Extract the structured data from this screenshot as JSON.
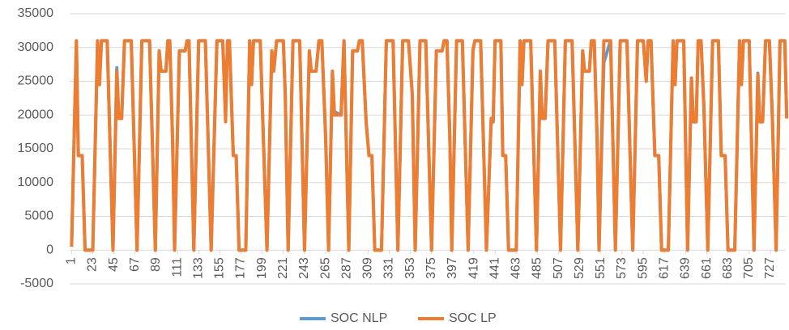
{
  "chart_data": {
    "type": "line",
    "x": [
      1,
      6,
      8,
      12,
      15,
      23,
      28,
      30,
      32,
      38,
      44,
      48,
      50,
      53,
      56,
      63,
      69,
      74,
      82,
      88,
      92,
      94,
      99,
      101,
      103,
      106,
      108,
      113,
      119,
      121,
      123,
      128,
      133,
      140,
      146,
      152,
      158,
      161,
      163,
      165,
      169,
      172,
      175,
      182,
      186,
      188,
      190,
      197,
      204,
      209,
      211,
      214,
      221,
      223,
      226,
      231,
      238,
      243,
      248,
      250,
      255,
      258,
      261,
      265,
      268,
      272,
      274,
      281,
      284,
      289,
      293,
      298,
      300,
      303,
      307,
      310,
      313,
      316,
      323,
      328,
      335,
      340,
      345,
      351,
      355,
      358,
      363,
      369,
      375,
      380,
      386,
      388,
      391,
      394,
      396,
      401,
      407,
      413,
      418,
      420,
      426,
      432,
      437,
      439,
      441,
      447,
      449,
      452,
      455,
      463,
      467,
      469,
      471,
      478,
      484,
      488,
      490,
      493,
      496,
      503,
      509,
      514,
      521,
      527,
      532,
      534,
      539,
      541,
      544,
      547,
      549,
      554,
      561,
      566,
      571,
      578,
      584,
      589,
      595,
      598,
      600,
      603,
      607,
      611,
      614,
      621,
      626,
      628,
      630,
      637,
      641,
      645,
      647,
      650,
      652,
      655,
      658,
      662,
      667,
      673,
      676,
      680,
      683,
      690,
      695,
      697,
      699,
      705,
      710,
      714,
      716,
      719,
      722,
      726,
      729,
      733,
      737,
      742,
      744
    ],
    "series": [
      {
        "name": "SOC NLP",
        "color": "#5b9bd5",
        "values": [
          500,
          31000,
          14000,
          14000,
          0,
          0,
          31000,
          24500,
          31000,
          31000,
          0,
          27000,
          19500,
          19500,
          31000,
          31000,
          0,
          31000,
          31000,
          0,
          29500,
          26500,
          26500,
          31000,
          31000,
          16000,
          0,
          29500,
          29500,
          31000,
          31000,
          0,
          31000,
          31000,
          0,
          31000,
          31000,
          21000,
          31000,
          31000,
          14000,
          14000,
          0,
          0,
          31000,
          24500,
          31000,
          31000,
          0,
          29500,
          26500,
          31000,
          31000,
          23000,
          0,
          31000,
          31000,
          0,
          29500,
          26500,
          26500,
          31000,
          31000,
          16500,
          0,
          26500,
          20500,
          20000,
          31000,
          0,
          29500,
          29500,
          31000,
          31000,
          19000,
          14000,
          14000,
          0,
          0,
          31000,
          31000,
          0,
          31000,
          31000,
          23000,
          0,
          31000,
          31000,
          0,
          29500,
          29500,
          31000,
          31000,
          16500,
          0,
          31000,
          31000,
          0,
          29500,
          31000,
          31000,
          0,
          19500,
          19000,
          31000,
          31000,
          14000,
          14000,
          0,
          0,
          31000,
          24500,
          31000,
          31000,
          0,
          26500,
          19500,
          19500,
          31000,
          31000,
          0,
          31000,
          31000,
          0,
          29500,
          26500,
          26500,
          31000,
          31000,
          16500,
          0,
          27800,
          31000,
          0,
          31000,
          31000,
          0,
          31000,
          31000,
          25000,
          31000,
          31000,
          14000,
          14000,
          0,
          0,
          31000,
          24500,
          31000,
          31000,
          0,
          25500,
          19000,
          19000,
          31000,
          31000,
          21000,
          0,
          31000,
          31000,
          14000,
          14000,
          0,
          0,
          31000,
          24500,
          31000,
          31000,
          0,
          26200,
          19000,
          19000,
          31000,
          31000,
          20000,
          0,
          31000,
          31000,
          19500
        ]
      },
      {
        "name": "SOC LP",
        "color": "#ed7d31",
        "values": [
          500,
          31000,
          14000,
          14000,
          0,
          0,
          31000,
          24500,
          31000,
          31000,
          0,
          26500,
          19500,
          19500,
          31000,
          31000,
          0,
          31000,
          31000,
          0,
          29500,
          26500,
          26500,
          31000,
          31000,
          16000,
          0,
          29500,
          29500,
          31000,
          31000,
          0,
          31000,
          31000,
          0,
          31000,
          31000,
          19000,
          31000,
          31000,
          14000,
          14000,
          0,
          0,
          31000,
          24500,
          31000,
          31000,
          0,
          29500,
          26500,
          31000,
          31000,
          23000,
          0,
          31000,
          31000,
          0,
          29500,
          26500,
          26500,
          31000,
          31000,
          16500,
          0,
          26500,
          20000,
          20000,
          31000,
          0,
          29500,
          29500,
          31000,
          31000,
          19000,
          14000,
          14000,
          0,
          0,
          31000,
          31000,
          0,
          31000,
          31000,
          23000,
          0,
          31000,
          31000,
          0,
          29500,
          29500,
          31000,
          31000,
          16500,
          0,
          31000,
          31000,
          0,
          29500,
          31000,
          31000,
          0,
          19500,
          19000,
          31000,
          31000,
          14000,
          14000,
          0,
          0,
          31000,
          24500,
          31000,
          31000,
          0,
          26500,
          19500,
          19500,
          31000,
          31000,
          0,
          31000,
          31000,
          0,
          29500,
          26500,
          26500,
          31000,
          31000,
          16500,
          0,
          31000,
          31000,
          0,
          31000,
          31000,
          0,
          31000,
          31000,
          25000,
          31000,
          31000,
          14000,
          14000,
          0,
          0,
          31000,
          24500,
          31000,
          31000,
          0,
          25500,
          19000,
          19000,
          31000,
          31000,
          21000,
          0,
          31000,
          31000,
          14000,
          14000,
          0,
          0,
          31000,
          24500,
          31000,
          31000,
          0,
          26000,
          19000,
          19000,
          31000,
          31000,
          20000,
          0,
          31000,
          31000,
          19500
        ]
      }
    ],
    "xlim": [
      -1,
      743
    ],
    "xticks": [
      1,
      23,
      45,
      67,
      89,
      111,
      133,
      155,
      177,
      199,
      221,
      243,
      265,
      287,
      309,
      331,
      353,
      375,
      397,
      419,
      441,
      463,
      485,
      507,
      529,
      551,
      573,
      595,
      617,
      639,
      661,
      683,
      705,
      727
    ],
    "ylim": [
      -5000,
      35000
    ],
    "yticks": [
      -5000,
      0,
      5000,
      10000,
      15000,
      20000,
      25000,
      30000,
      35000
    ],
    "grid": true,
    "legend": "bottom"
  }
}
